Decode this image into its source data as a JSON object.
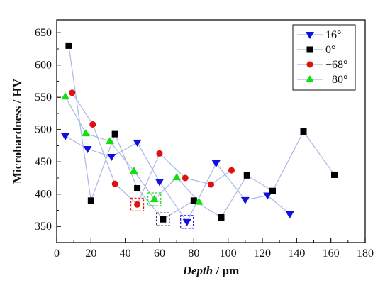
{
  "chart_data": {
    "type": "line",
    "xlabel": {
      "italic": "Depth",
      "rest": " / μm"
    },
    "ylabel": "Microhardness / HV",
    "xlim": [
      0,
      180
    ],
    "ylim": [
      325,
      670
    ],
    "x_ticks": [
      0,
      20,
      40,
      60,
      80,
      100,
      120,
      140,
      160,
      180
    ],
    "y_ticks": [
      350,
      400,
      450,
      500,
      550,
      600,
      650
    ],
    "grid": false,
    "legend_position": "top-right",
    "line_color": "#aab8e6",
    "series": [
      {
        "name": "16°",
        "marker": "triangle-down",
        "color": "#1010e0",
        "points": [
          [
            5,
            490
          ],
          [
            18,
            470
          ],
          [
            32,
            458
          ],
          [
            47,
            480
          ],
          [
            60,
            419
          ],
          [
            76,
            357
          ],
          [
            93,
            448
          ],
          [
            110,
            391
          ],
          [
            123,
            398
          ],
          [
            136,
            369
          ]
        ]
      },
      {
        "name": "0°",
        "marker": "square",
        "color": "#000000",
        "points": [
          [
            7,
            630
          ],
          [
            20,
            390
          ],
          [
            34,
            493
          ],
          [
            47,
            409
          ],
          [
            62,
            361
          ],
          [
            80,
            390
          ],
          [
            96,
            364
          ],
          [
            111,
            429
          ],
          [
            126,
            405
          ],
          [
            144,
            497
          ],
          [
            162,
            430
          ]
        ]
      },
      {
        "name": "−68°",
        "marker": "circle",
        "color": "#e01010",
        "points": [
          [
            9,
            557
          ],
          [
            21,
            508
          ],
          [
            34,
            416
          ],
          [
            47,
            384
          ],
          [
            60,
            463
          ],
          [
            75,
            425
          ],
          [
            90,
            415
          ],
          [
            102,
            437
          ]
        ]
      },
      {
        "name": "−80°",
        "marker": "triangle-up",
        "color": "#10e010",
        "points": [
          [
            5,
            551
          ],
          [
            17,
            494
          ],
          [
            31,
            482
          ],
          [
            45,
            436
          ],
          [
            57,
            392
          ],
          [
            70,
            426
          ],
          [
            83,
            388
          ]
        ]
      }
    ],
    "highlight_boxes": [
      {
        "series": "−68°",
        "x": 47,
        "y": 384,
        "color": "#e01010"
      },
      {
        "series": "−80°",
        "x": 57,
        "y": 392,
        "color": "#10e010"
      },
      {
        "series": "0°",
        "x": 62,
        "y": 361,
        "color": "#000000"
      },
      {
        "series": "16°",
        "x": 76,
        "y": 357,
        "color": "#1010e0"
      }
    ]
  }
}
